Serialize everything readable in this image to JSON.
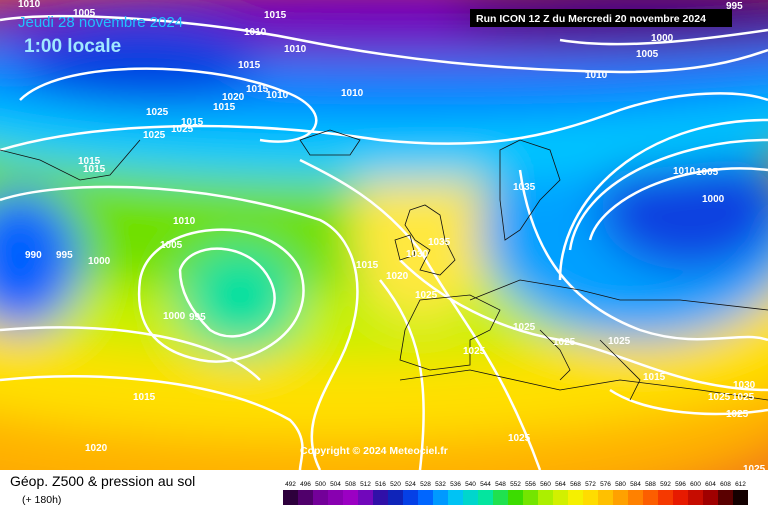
{
  "header": {
    "date": "Jeudi 28 novembre 2024",
    "time": "1:00 locale",
    "run": "Run ICON 12 Z du Mercredi 20 novembre 2024"
  },
  "copyright": "Copyright © 2024 Meteociel.fr",
  "footer": {
    "title": "Géop. Z500 & pression au sol",
    "lead": "(+ 180h)"
  },
  "scale": {
    "values": [
      492,
      496,
      500,
      504,
      508,
      512,
      516,
      520,
      524,
      528,
      532,
      536,
      540,
      544,
      548,
      552,
      556,
      560,
      564,
      568,
      572,
      576,
      580,
      584,
      588,
      592,
      596,
      600,
      604,
      608,
      612
    ]
  },
  "isobars": [
    1010,
    1005,
    1015,
    1010,
    1010,
    1015,
    1015,
    1020,
    1010,
    1015,
    1010,
    1025,
    1025,
    1015,
    1025,
    1015,
    1015,
    1010,
    1005,
    990,
    995,
    1000,
    1000,
    995,
    1015,
    1020,
    1010,
    1005,
    1000,
    995,
    1010,
    1005,
    1000,
    1035,
    1035,
    1030,
    1015,
    1020,
    1025,
    1025,
    1025,
    1025,
    1025,
    1015,
    1030,
    1025,
    1025,
    1025,
    1025,
    1025
  ]
}
